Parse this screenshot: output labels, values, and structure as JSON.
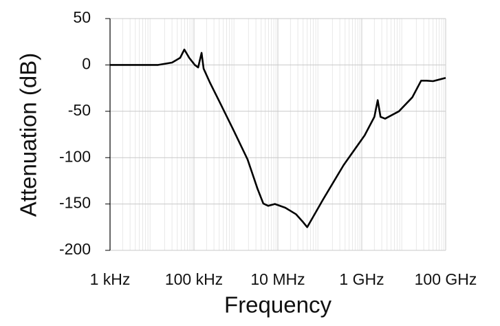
{
  "chart_data": {
    "type": "line",
    "x_label": "Frequency",
    "y_label": "Attenuation (dB)",
    "x_scale": "log",
    "grid": true,
    "minor_grid": true,
    "xlim": [
      1000,
      100000000000
    ],
    "xticks": [
      {
        "value": 1000,
        "label": "1 kHz"
      },
      {
        "value": 100000,
        "label": "100 kHz"
      },
      {
        "value": 10000000,
        "label": "10 MHz"
      },
      {
        "value": 1000000000,
        "label": "1 GHz"
      },
      {
        "value": 100000000000,
        "label": "100 GHz"
      }
    ],
    "ylim": [
      -200,
      50
    ],
    "yticks": [
      -200,
      -150,
      -100,
      -50,
      0,
      50
    ],
    "series": [
      {
        "color": "#000000",
        "x": [
          1000,
          14000,
          30000,
          47000,
          59000,
          77000,
          105000,
          126000,
          152000,
          170000,
          240000,
          420000,
          890000,
          1900000,
          3300000,
          4500000,
          5900000,
          8500000,
          15000000,
          27000000,
          39000000,
          50000000,
          69000000,
          120000000,
          370000000,
          1170000000,
          2000000000,
          2400000000,
          2800000000,
          3600000000,
          7700000000,
          16000000000,
          26000000000,
          35000000000,
          50000000000,
          100000000000
        ],
        "values": [
          0,
          0,
          2.5,
          7.7,
          16.6,
          7.7,
          0,
          -2.7,
          13,
          -4,
          -19,
          -41,
          -71,
          -102,
          -134,
          -149.5,
          -152,
          -150,
          -154,
          -161,
          -169,
          -175,
          -164,
          -145,
          -108,
          -76,
          -56,
          -38,
          -56,
          -58,
          -50,
          -35,
          -17,
          -17,
          -17.5,
          -14
        ]
      }
    ]
  }
}
